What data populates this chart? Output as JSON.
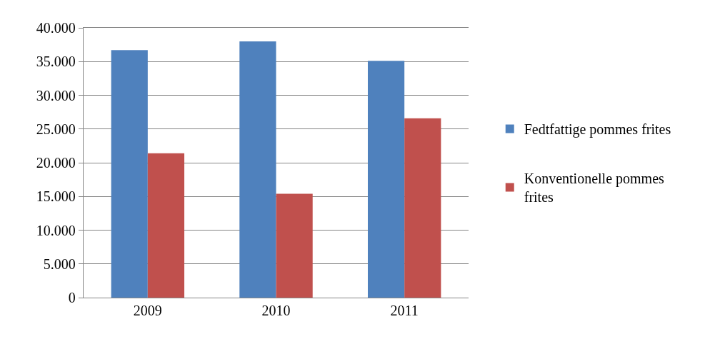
{
  "chart_data": {
    "type": "bar",
    "categories": [
      "2009",
      "2010",
      "2011"
    ],
    "series": [
      {
        "name": "Fedtfattige pommes frites",
        "color": "#4f81bd",
        "values": [
          36700,
          38000,
          35100
        ]
      },
      {
        "name": "Konventionelle pommes frites",
        "color": "#c0504d",
        "values": [
          21400,
          15400,
          26600
        ]
      }
    ],
    "ylim": [
      0,
      40000
    ],
    "yticks": [
      {
        "value": 0,
        "label": "0"
      },
      {
        "value": 5000,
        "label": "5.000"
      },
      {
        "value": 10000,
        "label": "10.000"
      },
      {
        "value": 15000,
        "label": "15.000"
      },
      {
        "value": 20000,
        "label": "20.000"
      },
      {
        "value": 25000,
        "label": "25.000"
      },
      {
        "value": 30000,
        "label": "30.000"
      },
      {
        "value": 35000,
        "label": "35.000"
      },
      {
        "value": 40000,
        "label": "40.000"
      }
    ],
    "grid": "y",
    "legend": "right"
  }
}
